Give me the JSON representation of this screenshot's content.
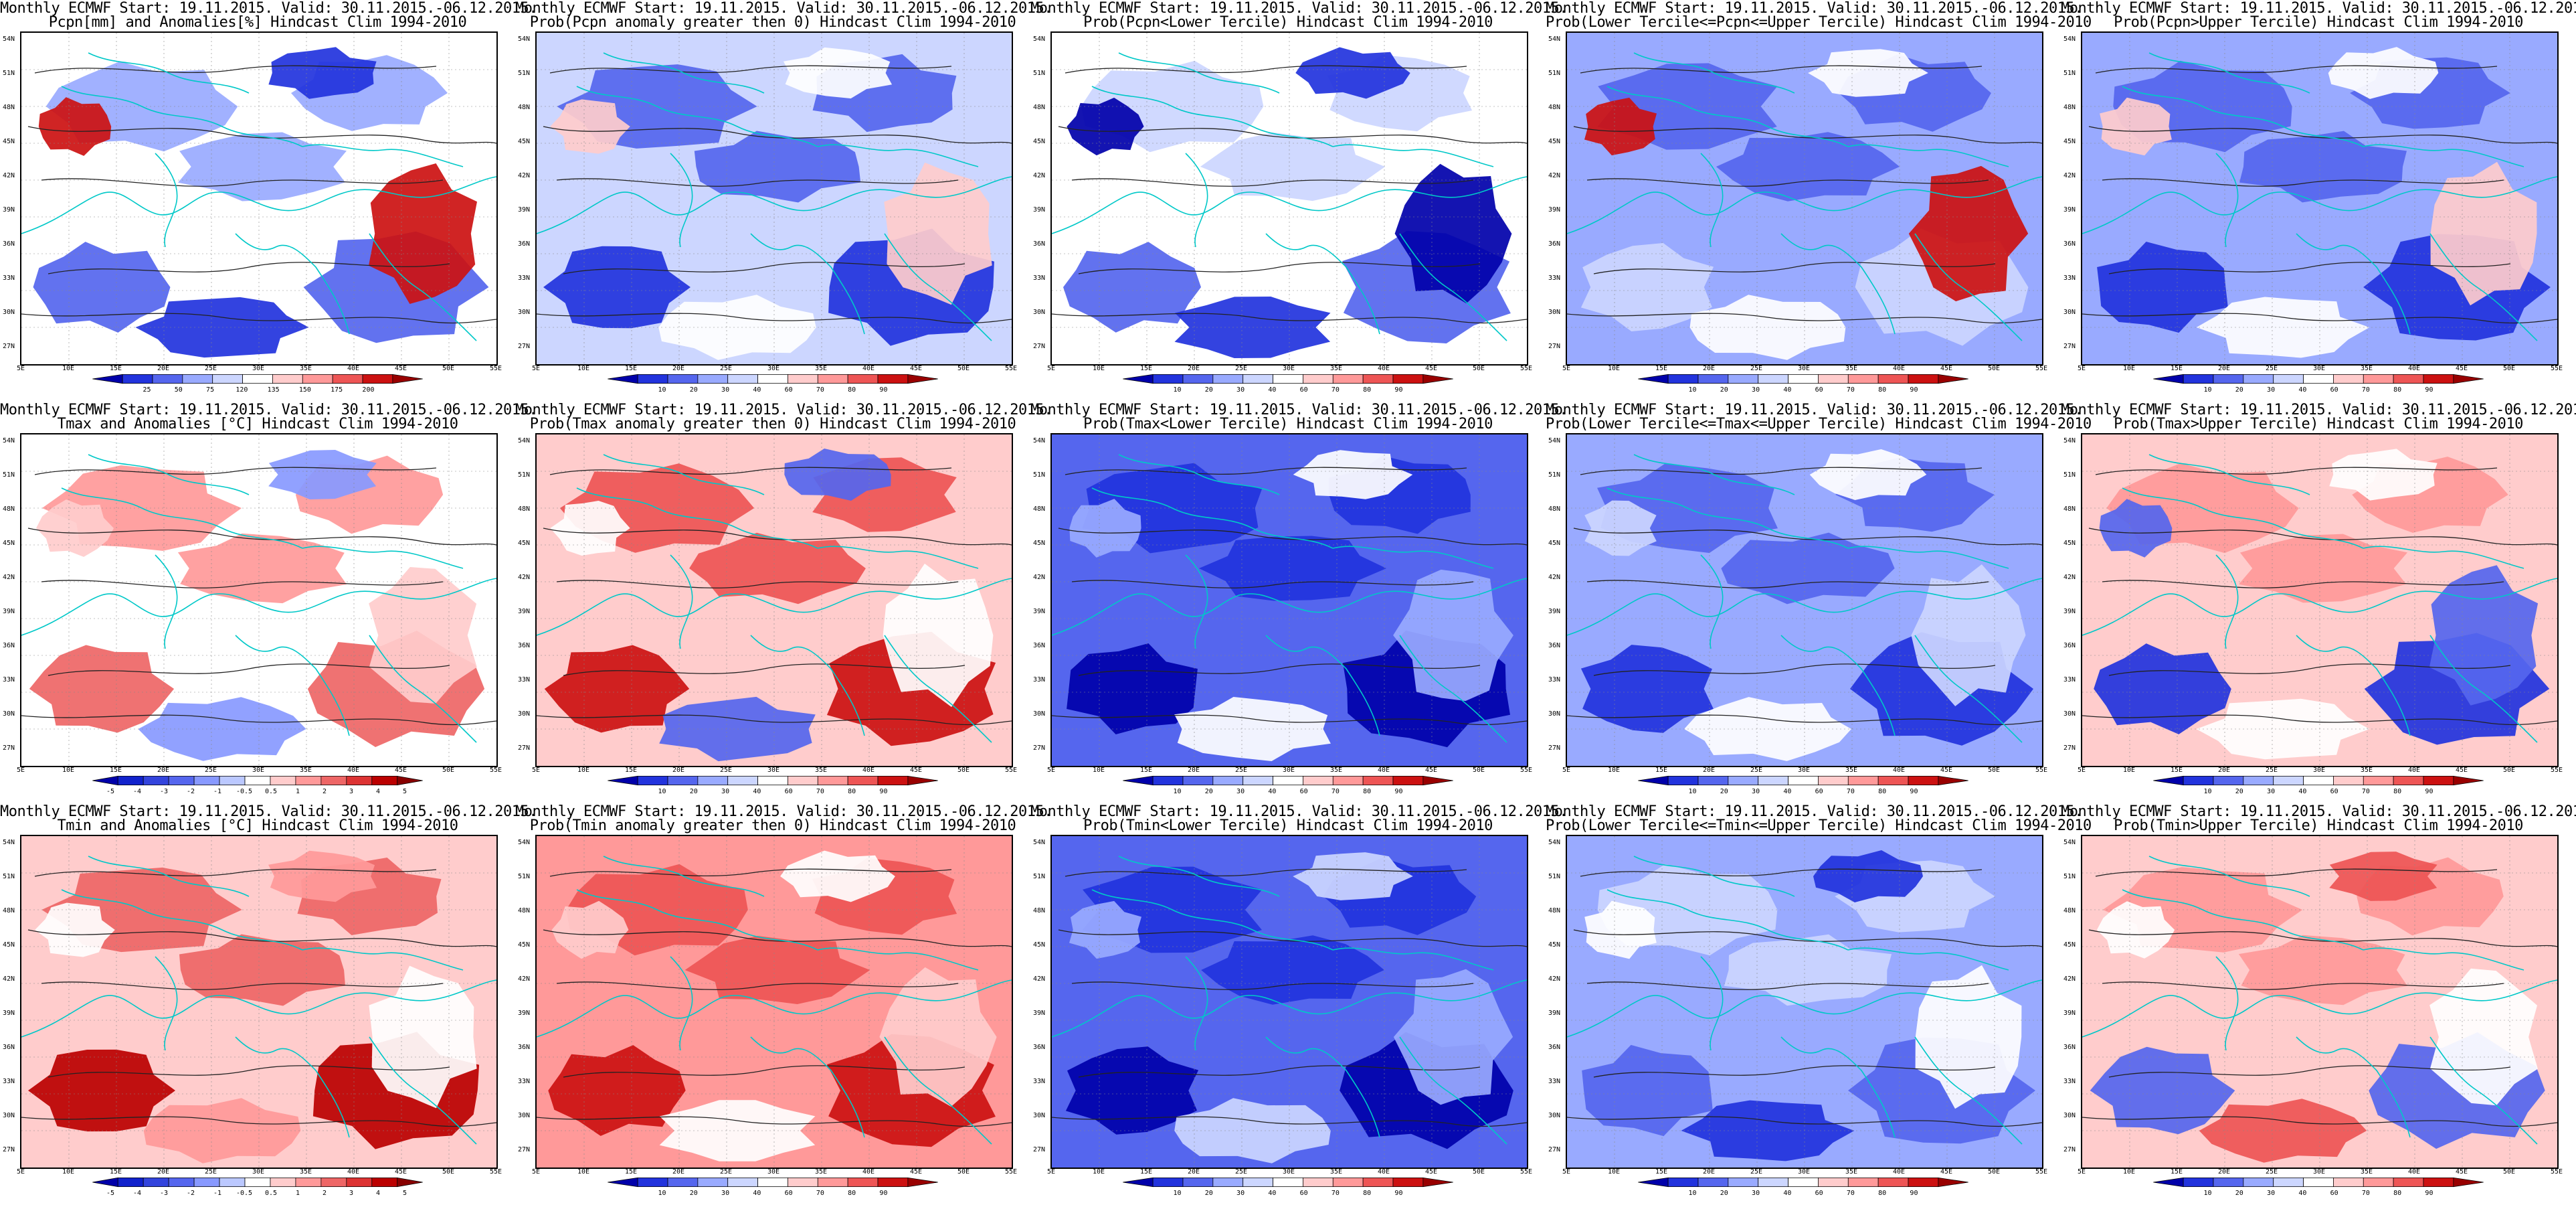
{
  "header": {
    "line1": "Monthly ECMWF Start: 19.11.2015. Valid: 30.11.2015.-06.12.2015.",
    "hindcast": "Hindcast Clim 1994-2010"
  },
  "axes": {
    "lat_labels": [
      "54N",
      "51N",
      "48N",
      "45N",
      "42N",
      "39N",
      "36N",
      "33N",
      "30N",
      "27N"
    ],
    "lon_labels": [
      "5E",
      "10E",
      "15E",
      "20E",
      "25E",
      "30E",
      "35E",
      "40E",
      "45E",
      "50E",
      "55E"
    ]
  },
  "colorbars": {
    "precip": {
      "labels": [
        "25",
        "50",
        "75",
        "120",
        "135",
        "150",
        "175",
        "200"
      ],
      "colors": [
        "#0000aa",
        "#2233dd",
        "#5566ee",
        "#99aaff",
        "#ccd6ff",
        "#ffffff",
        "#ffcccc",
        "#ff9999",
        "#ee5555",
        "#cc1111",
        "#990000"
      ]
    },
    "temp": {
      "labels": [
        "-5",
        "-4",
        "-3",
        "-2",
        "-1",
        "-0.5",
        "0.5",
        "1",
        "2",
        "3",
        "4",
        "5"
      ],
      "colors": [
        "#0000aa",
        "#1122cc",
        "#3344dd",
        "#5566ee",
        "#8899ff",
        "#bbc8ff",
        "#ffffff",
        "#ffcccc",
        "#ff9999",
        "#ee6666",
        "#dd3333",
        "#bb0000",
        "#880000"
      ]
    },
    "prob": {
      "labels": [
        "10",
        "20",
        "30",
        "40",
        "60",
        "70",
        "80",
        "90"
      ],
      "colors": [
        "#0000aa",
        "#2233dd",
        "#5566ee",
        "#99aaff",
        "#ccd6ff",
        "#ffffff",
        "#ffcccc",
        "#ff9999",
        "#ee5555",
        "#cc1111",
        "#990000"
      ]
    }
  },
  "panels": [
    {
      "id": "r1c1",
      "line2": "Pcpn[mm] and Anomalies[%] Hindcast Clim 1994-2010",
      "colorbar": "precip",
      "fill_colors": {
        "base": "#ffffff",
        "a": "#99aaff",
        "b": "#5566ee",
        "c": "#cc1111",
        "d": "#2233dd"
      }
    },
    {
      "id": "r1c2",
      "line2": "Prob(Pcpn anomaly greater then 0) Hindcast Clim 1994-2010",
      "colorbar": "prob",
      "fill_colors": {
        "base": "#ccd6ff",
        "a": "#5566ee",
        "b": "#2233dd",
        "c": "#ffcccc",
        "d": "#ffffff"
      }
    },
    {
      "id": "r1c3",
      "line2": "Prob(Pcpn<Lower Tercile) Hindcast Clim 1994-2010",
      "colorbar": "prob",
      "fill_colors": {
        "base": "#ffffff",
        "a": "#ccd6ff",
        "b": "#5566ee",
        "c": "#0000aa",
        "d": "#2233dd"
      }
    },
    {
      "id": "r1c4",
      "line2": "Prob(Lower Tercile<=Pcpn<=Upper Tercile) Hindcast Clim 1994-2010",
      "colorbar": "prob",
      "fill_colors": {
        "base": "#99aaff",
        "a": "#5566ee",
        "b": "#ccd6ff",
        "c": "#cc1111",
        "d": "#ffffff"
      }
    },
    {
      "id": "r1c5",
      "line2": "Prob(Pcpn>Upper Tercile) Hindcast Clim 1994-2010",
      "colorbar": "prob",
      "fill_colors": {
        "base": "#99aaff",
        "a": "#5566ee",
        "b": "#2233dd",
        "c": "#ffcccc",
        "d": "#ffffff"
      }
    },
    {
      "id": "r2c1",
      "line2": "Tmax and Anomalies [°C] Hindcast Clim 1994-2010",
      "colorbar": "temp",
      "fill_colors": {
        "base": "#ffffff",
        "a": "#ff9999",
        "b": "#ee6666",
        "c": "#ffcccc",
        "d": "#8899ff"
      }
    },
    {
      "id": "r2c2",
      "line2": "Prob(Tmax anomaly greater then 0) Hindcast Clim 1994-2010",
      "colorbar": "prob",
      "fill_colors": {
        "base": "#ffcccc",
        "a": "#ee5555",
        "b": "#cc1111",
        "c": "#ffffff",
        "d": "#5566ee"
      }
    },
    {
      "id": "r2c3",
      "line2": "Prob(Tmax<Lower Tercile) Hindcast Clim 1994-2010",
      "colorbar": "prob",
      "fill_colors": {
        "base": "#5566ee",
        "a": "#2233dd",
        "b": "#0000aa",
        "c": "#99aaff",
        "d": "#ffffff"
      }
    },
    {
      "id": "r2c4",
      "line2": "Prob(Lower Tercile<=Tmax<=Upper Tercile) Hindcast Clim 1994-2010",
      "colorbar": "prob",
      "fill_colors": {
        "base": "#99aaff",
        "a": "#5566ee",
        "b": "#2233dd",
        "c": "#ccd6ff",
        "d": "#ffffff"
      }
    },
    {
      "id": "r2c5",
      "line2": "Prob(Tmax>Upper Tercile) Hindcast Clim 1994-2010",
      "colorbar": "prob",
      "fill_colors": {
        "base": "#ffcccc",
        "a": "#ff9999",
        "b": "#2233dd",
        "c": "#5566ee",
        "d": "#ffffff"
      }
    },
    {
      "id": "r3c1",
      "line2": "Tmin and Anomalies [°C] Hindcast Clim 1994-2010",
      "colorbar": "temp",
      "fill_colors": {
        "base": "#ffcccc",
        "a": "#ee6666",
        "b": "#bb0000",
        "c": "#ffffff",
        "d": "#ff9999"
      }
    },
    {
      "id": "r3c2",
      "line2": "Prob(Tmin anomaly greater then 0) Hindcast Clim 1994-2010",
      "colorbar": "prob",
      "fill_colors": {
        "base": "#ff9999",
        "a": "#ee5555",
        "b": "#cc1111",
        "c": "#ffcccc",
        "d": "#ffffff"
      }
    },
    {
      "id": "r3c3",
      "line2": "Prob(Tmin<Lower Tercile) Hindcast Clim 1994-2010",
      "colorbar": "prob",
      "fill_colors": {
        "base": "#5566ee",
        "a": "#2233dd",
        "b": "#0000aa",
        "c": "#99aaff",
        "d": "#ccd6ff"
      }
    },
    {
      "id": "r3c4",
      "line2": "Prob(Lower Tercile<=Tmin<=Upper Tercile) Hindcast Clim 1994-2010",
      "colorbar": "prob",
      "fill_colors": {
        "base": "#99aaff",
        "a": "#ccd6ff",
        "b": "#5566ee",
        "c": "#ffffff",
        "d": "#2233dd"
      }
    },
    {
      "id": "r3c5",
      "line2": "Prob(Tmin>Upper Tercile) Hindcast Clim 1994-2010",
      "colorbar": "prob",
      "fill_colors": {
        "base": "#ffcccc",
        "a": "#ff9999",
        "b": "#5566ee",
        "c": "#ffffff",
        "d": "#ee5555"
      }
    }
  ]
}
